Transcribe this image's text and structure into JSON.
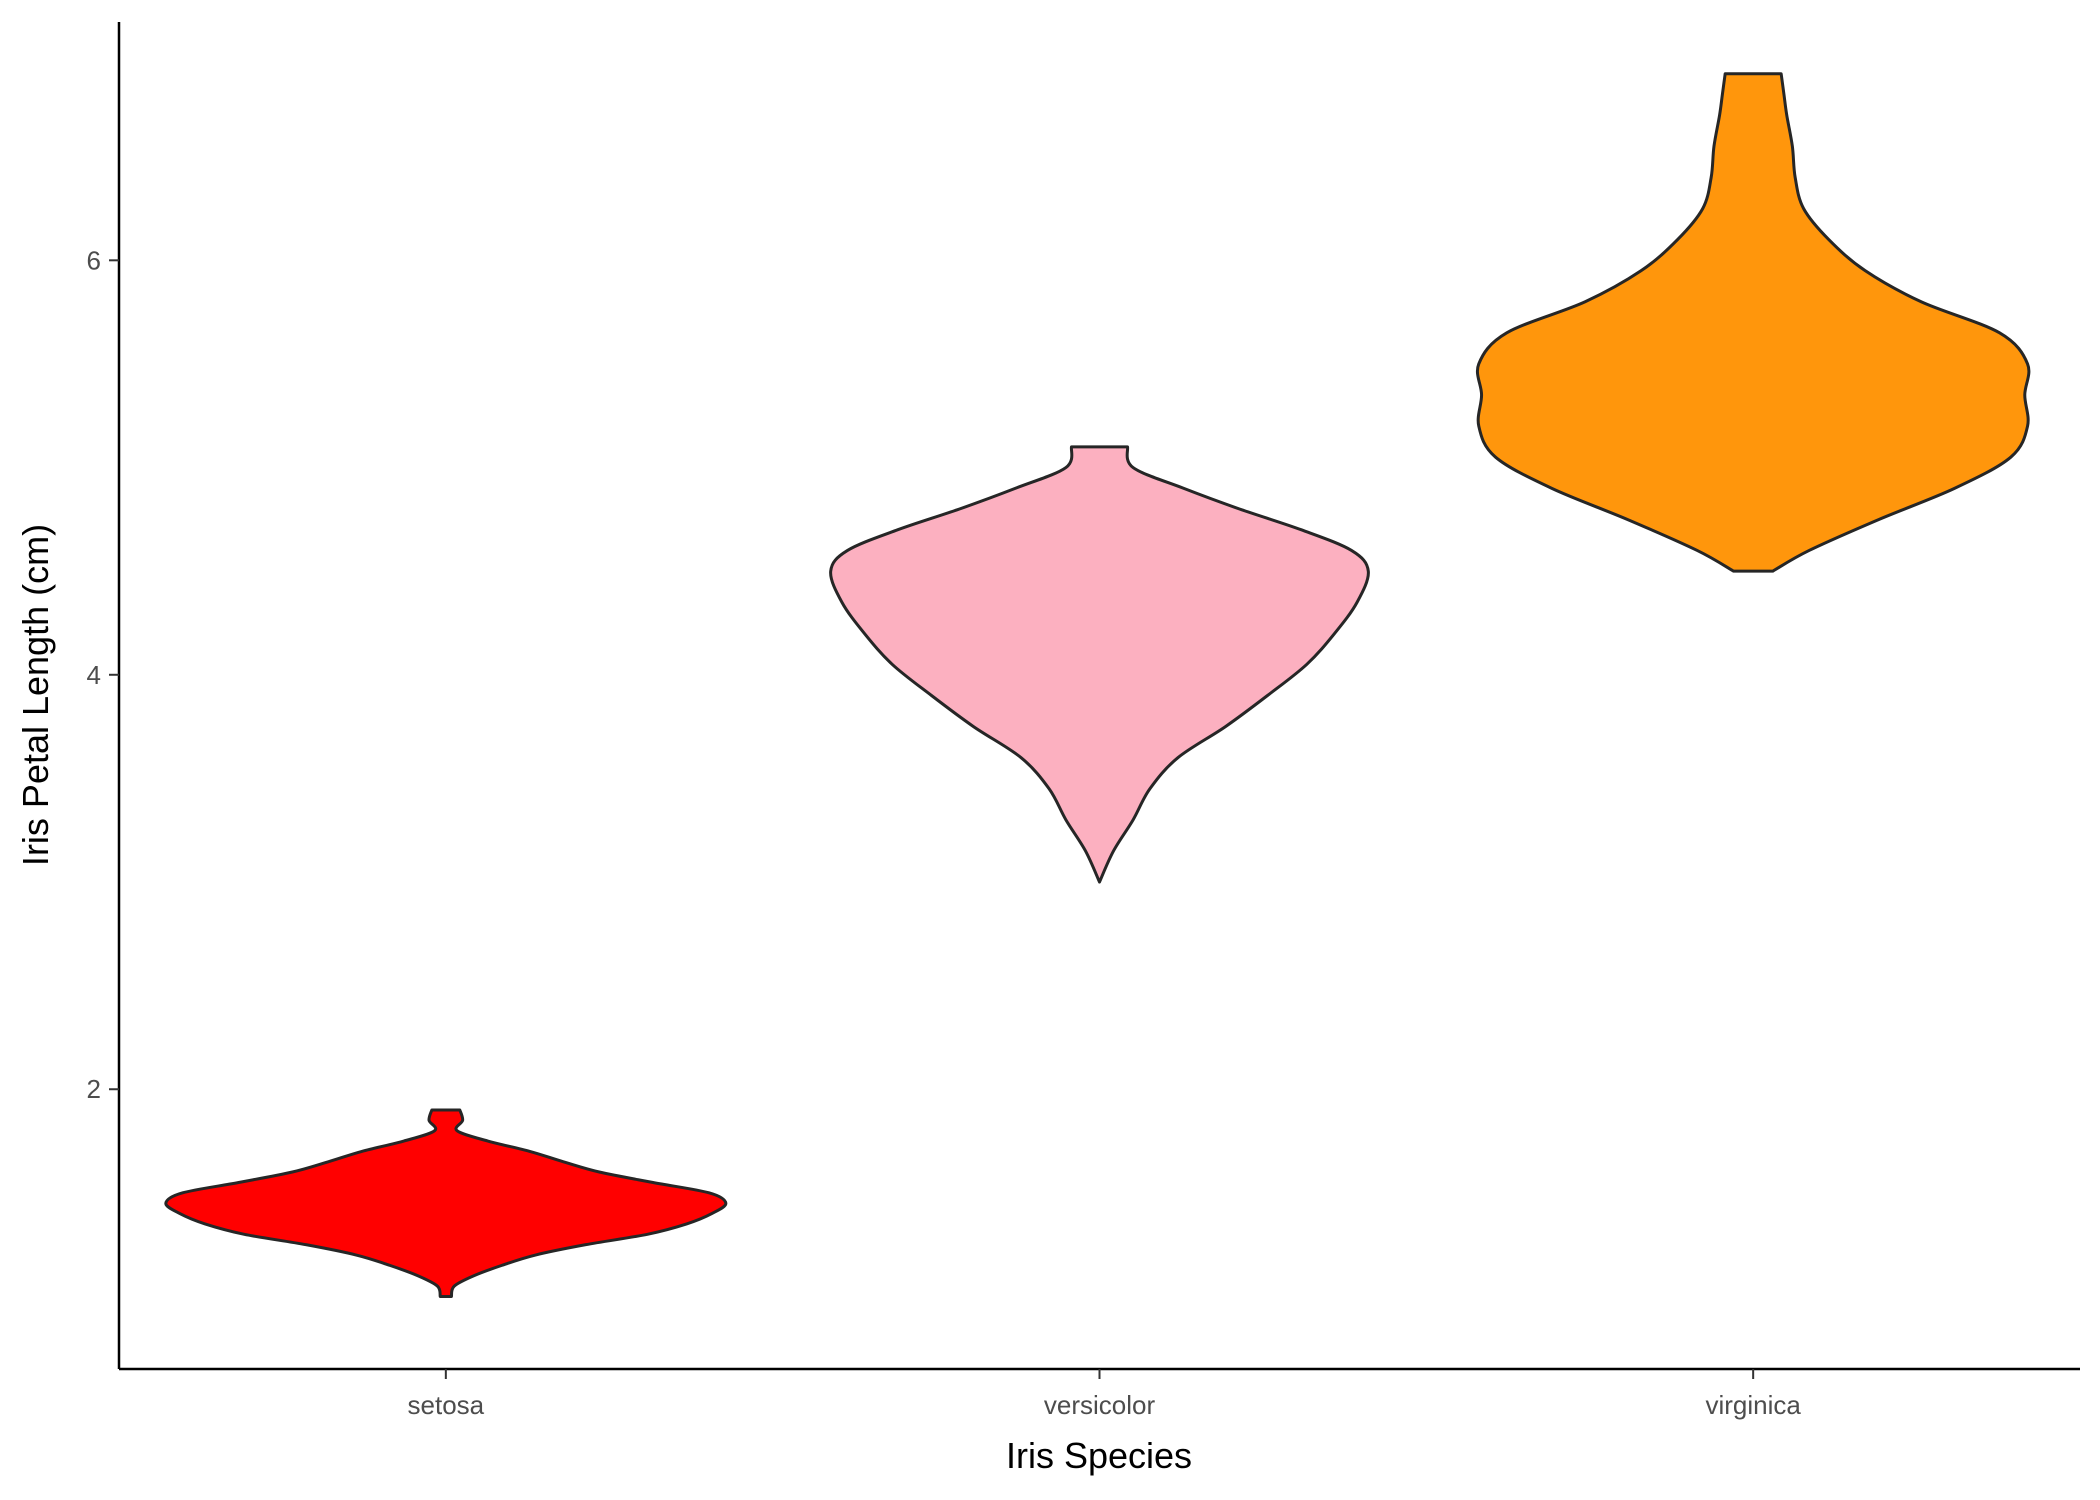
{
  "chart_data": {
    "type": "violin",
    "xlabel": "Iris Species",
    "ylabel": "Iris Petal Length (cm)",
    "ylim": [
      0.65,
      7.15
    ],
    "yticks": [
      2,
      4,
      6
    ],
    "ytick_labels": [
      "2",
      "4",
      "6"
    ],
    "grid": false,
    "legend": "none",
    "categories": [
      "setosa",
      "versicolor",
      "virginica"
    ],
    "series": [
      {
        "category": "setosa",
        "color": "#FF0000",
        "min": 1.0,
        "max": 1.9,
        "profile": [
          [
            1.0,
            0.02
          ],
          [
            1.05,
            0.03
          ],
          [
            1.1,
            0.1
          ],
          [
            1.15,
            0.2
          ],
          [
            1.2,
            0.32
          ],
          [
            1.25,
            0.5
          ],
          [
            1.3,
            0.72
          ],
          [
            1.35,
            0.86
          ],
          [
            1.4,
            0.95
          ],
          [
            1.45,
            1.0
          ],
          [
            1.5,
            0.94
          ],
          [
            1.55,
            0.74
          ],
          [
            1.6,
            0.55
          ],
          [
            1.65,
            0.42
          ],
          [
            1.7,
            0.3
          ],
          [
            1.75,
            0.15
          ],
          [
            1.8,
            0.04
          ],
          [
            1.85,
            0.06
          ],
          [
            1.9,
            0.05
          ]
        ]
      },
      {
        "category": "versicolor",
        "color": "#FCB0C0",
        "min": 3.0,
        "max": 5.1,
        "profile": [
          [
            3.0,
            0.0
          ],
          [
            3.15,
            0.05
          ],
          [
            3.3,
            0.12
          ],
          [
            3.45,
            0.18
          ],
          [
            3.6,
            0.28
          ],
          [
            3.75,
            0.45
          ],
          [
            3.9,
            0.6
          ],
          [
            4.05,
            0.74
          ],
          [
            4.2,
            0.84
          ],
          [
            4.35,
            0.92
          ],
          [
            4.5,
            0.96
          ],
          [
            4.6,
            0.9
          ],
          [
            4.7,
            0.72
          ],
          [
            4.8,
            0.5
          ],
          [
            4.9,
            0.3
          ],
          [
            5.0,
            0.12
          ],
          [
            5.1,
            0.1
          ]
        ]
      },
      {
        "category": "virginica",
        "color": "#FF960C",
        "min": 4.5,
        "max": 6.9,
        "profile": [
          [
            4.5,
            0.07
          ],
          [
            4.6,
            0.2
          ],
          [
            4.75,
            0.45
          ],
          [
            4.9,
            0.72
          ],
          [
            5.05,
            0.92
          ],
          [
            5.2,
            0.98
          ],
          [
            5.35,
            0.97
          ],
          [
            5.5,
            0.98
          ],
          [
            5.65,
            0.88
          ],
          [
            5.8,
            0.6
          ],
          [
            5.95,
            0.4
          ],
          [
            6.1,
            0.27
          ],
          [
            6.25,
            0.18
          ],
          [
            6.4,
            0.15
          ],
          [
            6.55,
            0.14
          ],
          [
            6.7,
            0.12
          ],
          [
            6.8,
            0.11
          ],
          [
            6.9,
            0.1
          ]
        ]
      }
    ]
  }
}
